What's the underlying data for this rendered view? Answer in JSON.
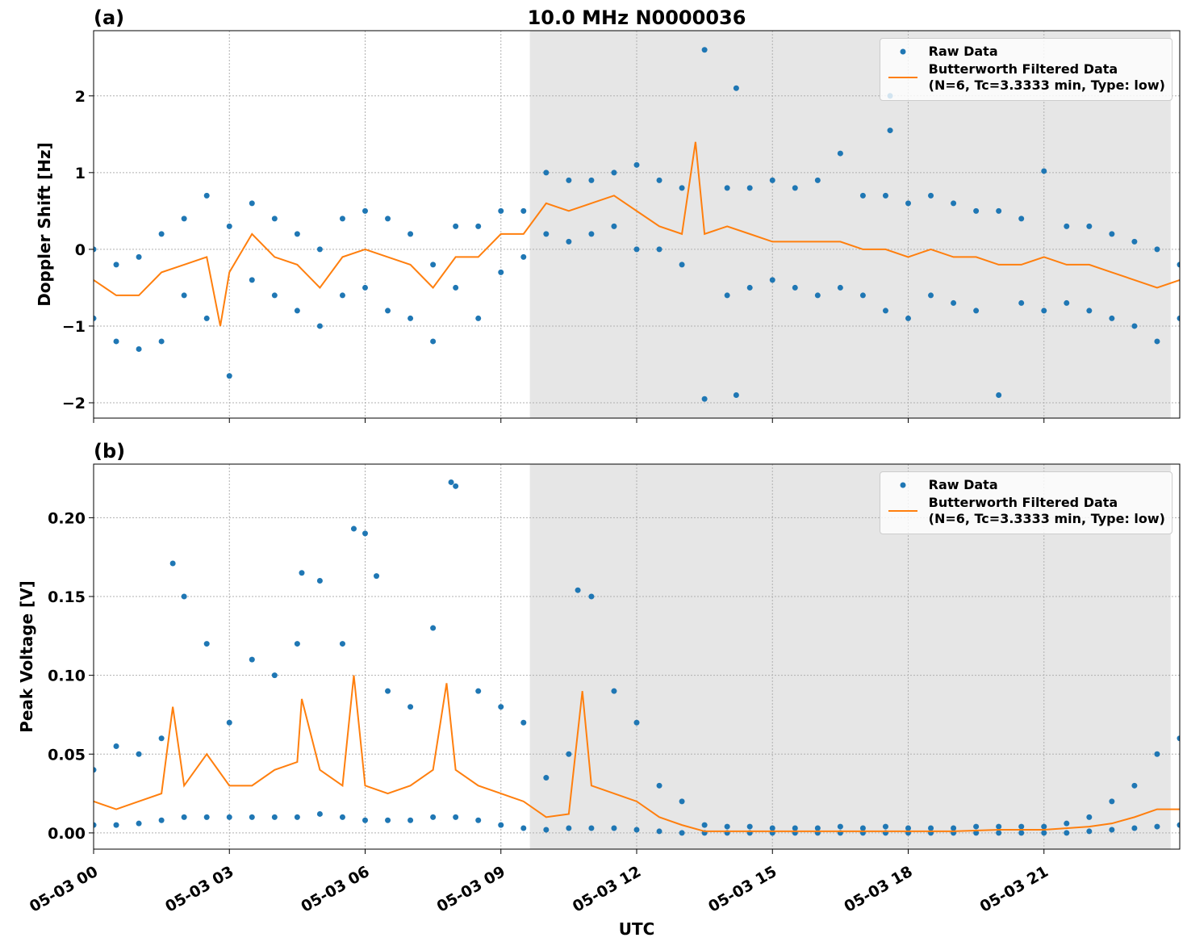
{
  "chart_data": [
    {
      "type": "scatter",
      "label": "(a)",
      "title": "10.0 MHz N0000036",
      "ylabel": "Doppler Shift [Hz]",
      "xlim": [
        0,
        24
      ],
      "xticks": [
        0,
        3,
        6,
        9,
        12,
        15,
        18,
        21
      ],
      "ylim": [
        -2.2,
        2.85
      ],
      "yticks": [
        {
          "value": -2,
          "label": "−2"
        },
        {
          "value": -1,
          "label": "−1"
        },
        0,
        1,
        2
      ],
      "grid": true,
      "legend": "upper right",
      "shade": [
        9.64,
        23.8
      ],
      "series": [
        {
          "name": "Raw Data",
          "color": "#1f77b4",
          "mode": "markers",
          "x": [
            0,
            0,
            0.5,
            0.5,
            1,
            1,
            1.5,
            1.5,
            2,
            2,
            2.5,
            2.5,
            3,
            3,
            3.5,
            3.5,
            4,
            4,
            4.5,
            4.5,
            5,
            5,
            5.5,
            5.5,
            6,
            6,
            6.5,
            6.5,
            7,
            7,
            7.5,
            7.5,
            8,
            8,
            8.5,
            8.5,
            9,
            9,
            9.5,
            9.5,
            10,
            10,
            10.5,
            10.5,
            11,
            11,
            11.5,
            11.5,
            12,
            12,
            12.5,
            12.5,
            13,
            13,
            13.5,
            13.5,
            14,
            14,
            14.5,
            14.5,
            15,
            15,
            15.5,
            15.5,
            16,
            16,
            16.5,
            16.5,
            17,
            17,
            17.5,
            17.5,
            18,
            18,
            18.5,
            18.5,
            19,
            19,
            19.5,
            19.5,
            20,
            20,
            20.5,
            20.5,
            21,
            21,
            21.5,
            21.5,
            22,
            22,
            22.5,
            22.5,
            23,
            23,
            23.5,
            23.5,
            24,
            24,
            14.2,
            14.2,
            17.6,
            17.6
          ],
          "values": [
            0.0,
            -0.9,
            -0.2,
            -1.2,
            -0.1,
            -1.3,
            0.2,
            -1.2,
            0.4,
            -0.6,
            0.7,
            -0.9,
            0.3,
            -1.65,
            0.6,
            -0.4,
            0.4,
            -0.6,
            0.2,
            -0.8,
            0.0,
            -1.0,
            0.4,
            -0.6,
            0.5,
            -0.5,
            0.4,
            -0.8,
            0.2,
            -0.9,
            -0.2,
            -1.2,
            0.3,
            -0.5,
            0.3,
            -0.9,
            0.5,
            -0.3,
            0.5,
            -0.1,
            1.0,
            0.2,
            0.9,
            0.1,
            0.9,
            0.2,
            1.0,
            0.3,
            1.1,
            0.0,
            0.9,
            0.0,
            0.8,
            -0.2,
            2.6,
            -1.95,
            0.8,
            -0.6,
            0.8,
            -0.5,
            0.9,
            -0.4,
            0.8,
            -0.5,
            0.9,
            -0.6,
            1.25,
            -0.5,
            0.7,
            -0.6,
            0.7,
            -0.8,
            0.6,
            -0.9,
            0.7,
            -0.6,
            0.6,
            -0.7,
            0.5,
            -0.8,
            0.5,
            -1.9,
            0.4,
            -0.7,
            1.02,
            -0.8,
            0.3,
            -0.7,
            0.3,
            -0.8,
            0.2,
            -0.9,
            0.1,
            -1.0,
            0.0,
            -1.2,
            -0.2,
            -0.9,
            2.1,
            -1.9,
            1.55,
            2.0
          ]
        },
        {
          "name": "Butterworth Filtered Data\n(N=6, Tc=3.3333 min, Type: low)",
          "color": "#ff7f0e",
          "mode": "line",
          "x": [
            0,
            0.5,
            1,
            1.5,
            2,
            2.5,
            2.8,
            3,
            3.5,
            4,
            4.5,
            5,
            5.5,
            6,
            6.5,
            7,
            7.5,
            8,
            8.5,
            9,
            9.5,
            10,
            10.5,
            11,
            11.5,
            12,
            12.5,
            13,
            13.3,
            13.5,
            14,
            14.5,
            15,
            15.5,
            16,
            16.5,
            17,
            17.5,
            18,
            18.5,
            19,
            19.5,
            20,
            20.5,
            21,
            21.5,
            22,
            22.5,
            23,
            23.5,
            24
          ],
          "values": [
            -0.4,
            -0.6,
            -0.6,
            -0.3,
            -0.2,
            -0.1,
            -1.0,
            -0.3,
            0.2,
            -0.1,
            -0.2,
            -0.5,
            -0.1,
            0.0,
            -0.1,
            -0.2,
            -0.5,
            -0.1,
            -0.1,
            0.2,
            0.2,
            0.6,
            0.5,
            0.6,
            0.7,
            0.5,
            0.3,
            0.2,
            1.4,
            0.2,
            0.3,
            0.2,
            0.1,
            0.1,
            0.1,
            0.1,
            0.0,
            0.0,
            -0.1,
            0.0,
            -0.1,
            -0.1,
            -0.2,
            -0.2,
            -0.1,
            -0.2,
            -0.2,
            -0.3,
            -0.4,
            -0.5,
            -0.4
          ]
        }
      ]
    },
    {
      "type": "scatter",
      "label": "(b)",
      "ylabel": "Peak Voltage [V]",
      "xlabel": "UTC",
      "xlim": [
        0,
        24
      ],
      "xticks": [
        {
          "value": 0,
          "label": "05-03 00"
        },
        {
          "value": 3,
          "label": "05-03 03"
        },
        {
          "value": 6,
          "label": "05-03 06"
        },
        {
          "value": 9,
          "label": "05-03 09"
        },
        {
          "value": 12,
          "label": "05-03 12"
        },
        {
          "value": 15,
          "label": "05-03 15"
        },
        {
          "value": 18,
          "label": "05-03 18"
        },
        {
          "value": 21,
          "label": "05-03 21"
        }
      ],
      "ylim": [
        -0.0103,
        0.234
      ],
      "yticks": [
        {
          "value": 0,
          "label": "0.00"
        },
        {
          "value": 0.05,
          "label": "0.05"
        },
        {
          "value": 0.1,
          "label": "0.10"
        },
        {
          "value": 0.15,
          "label": "0.15"
        },
        {
          "value": 0.2,
          "label": "0.20"
        }
      ],
      "grid": true,
      "legend": "upper right",
      "shade": [
        9.64,
        23.8
      ],
      "series": [
        {
          "name": "Raw Data",
          "color": "#1f77b4",
          "mode": "markers",
          "x": [
            0,
            0,
            0.5,
            0.5,
            1,
            1,
            1.5,
            1.5,
            2,
            2,
            2.5,
            2.5,
            3,
            3,
            3.5,
            3.5,
            4,
            4,
            4.5,
            4.5,
            5,
            5,
            5.5,
            5.5,
            6,
            6,
            6.5,
            6.5,
            7,
            7,
            7.5,
            7.5,
            8,
            8,
            8.5,
            8.5,
            9,
            9,
            9.5,
            9.5,
            10,
            10,
            10.5,
            10.5,
            11,
            11,
            11.5,
            11.5,
            12,
            12,
            12.5,
            12.5,
            13,
            13,
            13.5,
            13.5,
            14,
            14,
            14.5,
            14.5,
            15,
            15,
            15.5,
            15.5,
            16,
            16,
            16.5,
            16.5,
            17,
            17,
            17.5,
            17.5,
            18,
            18,
            18.5,
            18.5,
            19,
            19,
            19.5,
            19.5,
            20,
            20,
            20.5,
            20.5,
            21,
            21,
            21.5,
            21.5,
            22,
            22,
            22.5,
            22.5,
            23,
            23,
            23.5,
            23.5,
            24,
            24,
            1.75,
            5.75,
            7.9,
            10.7,
            6.25,
            4.6
          ],
          "values": [
            0.04,
            0.005,
            0.055,
            0.005,
            0.05,
            0.006,
            0.06,
            0.008,
            0.15,
            0.01,
            0.12,
            0.01,
            0.07,
            0.01,
            0.11,
            0.01,
            0.1,
            0.01,
            0.12,
            0.01,
            0.16,
            0.012,
            0.12,
            0.01,
            0.19,
            0.008,
            0.09,
            0.008,
            0.08,
            0.008,
            0.13,
            0.01,
            0.22,
            0.01,
            0.09,
            0.008,
            0.08,
            0.005,
            0.07,
            0.003,
            0.035,
            0.002,
            0.05,
            0.003,
            0.15,
            0.003,
            0.09,
            0.003,
            0.07,
            0.002,
            0.03,
            0.001,
            0.02,
            0.0,
            0.005,
            0.0,
            0.004,
            0.0,
            0.004,
            0.0,
            0.003,
            0.0,
            0.003,
            0.0,
            0.003,
            0.0,
            0.004,
            0.0,
            0.003,
            0.0,
            0.004,
            0.0,
            0.003,
            0.0,
            0.003,
            0.0,
            0.003,
            0.0,
            0.004,
            0.0,
            0.004,
            0.0,
            0.004,
            0.0,
            0.004,
            0.0,
            0.006,
            0.0,
            0.01,
            0.001,
            0.02,
            0.002,
            0.03,
            0.003,
            0.05,
            0.004,
            0.06,
            0.005,
            0.171,
            0.193,
            0.2225,
            0.154,
            0.163,
            0.165
          ]
        },
        {
          "name": "Butterworth Filtered Data\n(N=6, Tc=3.3333 min, Type: low)",
          "color": "#ff7f0e",
          "mode": "line",
          "x": [
            0,
            0.5,
            1,
            1.5,
            1.75,
            2,
            2.5,
            3,
            3.5,
            4,
            4.5,
            4.6,
            5,
            5.5,
            5.75,
            6,
            6.5,
            7,
            7.5,
            7.8,
            8,
            8.5,
            9,
            9.5,
            10,
            10.5,
            10.8,
            11,
            11.5,
            12,
            12.5,
            13,
            13.5,
            14,
            15,
            16,
            17,
            18,
            19,
            20,
            21,
            22,
            22.5,
            23,
            23.5,
            24
          ],
          "values": [
            0.02,
            0.015,
            0.02,
            0.025,
            0.08,
            0.03,
            0.05,
            0.03,
            0.03,
            0.04,
            0.045,
            0.085,
            0.04,
            0.03,
            0.1,
            0.03,
            0.025,
            0.03,
            0.04,
            0.095,
            0.04,
            0.03,
            0.025,
            0.02,
            0.01,
            0.012,
            0.09,
            0.03,
            0.025,
            0.02,
            0.01,
            0.005,
            0.001,
            0.001,
            0.001,
            0.001,
            0.001,
            0.001,
            0.001,
            0.002,
            0.002,
            0.004,
            0.006,
            0.01,
            0.015,
            0.015
          ]
        }
      ]
    }
  ]
}
